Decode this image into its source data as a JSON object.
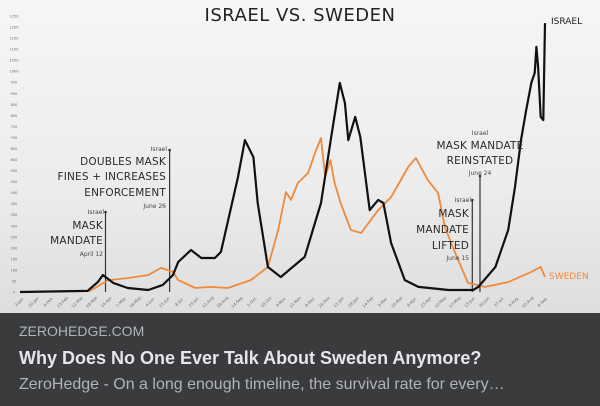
{
  "card": {
    "domain": "ZEROHEDGE.COM",
    "title": "Why Does No One Ever Talk About Sweden Anymore?",
    "description": "ZeroHedge - On a long enough timeline, the survival rate for every…"
  },
  "colors": {
    "israel": "#111111",
    "sweden": "#ef8a3c",
    "card_bg": "#3a3b3c"
  },
  "chart_data": {
    "type": "line",
    "title": "ISRAEL VS. SWEDEN",
    "ylim": [
      0,
      1250
    ],
    "yticks": [
      0,
      50,
      100,
      150,
      200,
      250,
      300,
      350,
      400,
      450,
      500,
      550,
      600,
      650,
      700,
      750,
      800,
      850,
      900,
      950,
      1000,
      1050,
      1100,
      1150,
      1200,
      1250
    ],
    "xticks": [
      "3-Jan",
      "20-Jan",
      "6-Feb",
      "23-Feb",
      "11-Mar",
      "28-Mar",
      "14-Apr",
      "1-May",
      "18-May",
      "4-Jun",
      "21-Jun",
      "8-Jul",
      "25-Jul",
      "11-Aug",
      "28-Aug",
      "14-Sep",
      "1-Oct",
      "18-Oct",
      "4-Nov",
      "21-Nov",
      "8-Dec",
      "25-Dec",
      "11-Jan",
      "28-Jan",
      "14-Feb",
      "3-Mar",
      "20-Mar",
      "6-Apr",
      "23-Apr",
      "10-May",
      "27-May",
      "13-Jun",
      "30-Jun",
      "17-Jul",
      "3-Aug",
      "20-Aug",
      "6-Sep"
    ],
    "grid": false,
    "series": [
      {
        "name": "ISRAEL",
        "points": [
          [
            "2020-01-03",
            0
          ],
          [
            "2020-03-22",
            5
          ],
          [
            "2020-04-03",
            45
          ],
          [
            "2020-04-09",
            77
          ],
          [
            "2020-04-21",
            41
          ],
          [
            "2020-05-08",
            18
          ],
          [
            "2020-06-01",
            9
          ],
          [
            "2020-06-18",
            32
          ],
          [
            "2020-06-30",
            77
          ],
          [
            "2020-07-06",
            136
          ],
          [
            "2020-07-21",
            190
          ],
          [
            "2020-08-02",
            154
          ],
          [
            "2020-08-18",
            154
          ],
          [
            "2020-08-25",
            181
          ],
          [
            "2020-09-14",
            521
          ],
          [
            "2020-09-22",
            688
          ],
          [
            "2020-10-02",
            611
          ],
          [
            "2020-10-07",
            403
          ],
          [
            "2020-10-19",
            113
          ],
          [
            "2020-11-03",
            68
          ],
          [
            "2020-12-01",
            159
          ],
          [
            "2020-12-20",
            403
          ],
          [
            "2021-01-01",
            702
          ],
          [
            "2021-01-11",
            947
          ],
          [
            "2021-01-17",
            856
          ],
          [
            "2021-01-21",
            688
          ],
          [
            "2021-01-29",
            793
          ],
          [
            "2021-02-04",
            702
          ],
          [
            "2021-02-15",
            371
          ],
          [
            "2021-02-25",
            417
          ],
          [
            "2021-03-03",
            403
          ],
          [
            "2021-03-12",
            222
          ],
          [
            "2021-03-28",
            54
          ],
          [
            "2021-04-13",
            23
          ],
          [
            "2021-05-18",
            9
          ],
          [
            "2021-06-16",
            9
          ],
          [
            "2021-06-22",
            23
          ],
          [
            "2021-07-12",
            113
          ],
          [
            "2021-07-27",
            281
          ],
          [
            "2021-08-04",
            476
          ],
          [
            "2021-08-11",
            688
          ],
          [
            "2021-08-17",
            824
          ],
          [
            "2021-08-23",
            947
          ],
          [
            "2021-08-27",
            992
          ],
          [
            "2021-08-29",
            1110
          ],
          [
            "2021-08-31",
            1019
          ],
          [
            "2021-09-03",
            793
          ],
          [
            "2021-09-06",
            779
          ],
          [
            "2021-09-08",
            1218
          ]
        ]
      },
      {
        "name": "SWEDEN",
        "points": [
          [
            "2020-01-03",
            0
          ],
          [
            "2020-03-25",
            5
          ],
          [
            "2020-04-15",
            54
          ],
          [
            "2020-05-08",
            63
          ],
          [
            "2020-06-01",
            77
          ],
          [
            "2020-06-16",
            109
          ],
          [
            "2020-06-30",
            91
          ],
          [
            "2020-07-06",
            54
          ],
          [
            "2020-07-26",
            18
          ],
          [
            "2020-08-13",
            23
          ],
          [
            "2020-09-02",
            18
          ],
          [
            "2020-09-29",
            54
          ],
          [
            "2020-10-19",
            113
          ],
          [
            "2020-10-31",
            281
          ],
          [
            "2020-11-09",
            453
          ],
          [
            "2020-11-15",
            417
          ],
          [
            "2020-11-23",
            494
          ],
          [
            "2020-12-05",
            539
          ],
          [
            "2020-12-13",
            630
          ],
          [
            "2020-12-20",
            697
          ],
          [
            "2020-12-25",
            521
          ],
          [
            "2020-12-31",
            598
          ],
          [
            "2021-01-05",
            494
          ],
          [
            "2021-01-12",
            403
          ],
          [
            "2021-01-24",
            281
          ],
          [
            "2021-02-05",
            267
          ],
          [
            "2021-02-25",
            371
          ],
          [
            "2021-03-12",
            430
          ],
          [
            "2021-04-01",
            566
          ],
          [
            "2021-04-10",
            607
          ],
          [
            "2021-04-24",
            507
          ],
          [
            "2021-05-06",
            448
          ],
          [
            "2021-05-14",
            294
          ],
          [
            "2021-05-26",
            177
          ],
          [
            "2021-06-02",
            113
          ],
          [
            "2021-06-10",
            41
          ],
          [
            "2021-06-30",
            23
          ],
          [
            "2021-07-27",
            45
          ],
          [
            "2021-08-23",
            91
          ],
          [
            "2021-09-03",
            113
          ],
          [
            "2021-09-08",
            68
          ]
        ]
      }
    ],
    "annotations": [
      {
        "country": "Israel",
        "lines": [
          "MASK",
          "MANDATE"
        ],
        "date_label": "April 12",
        "date": "2020-04-12"
      },
      {
        "country": "Israel",
        "lines": [
          "DOUBLES MASK",
          "FINES + INCREASES",
          "ENFORCEMENT"
        ],
        "date_label": "June 26",
        "date": "2020-06-26"
      },
      {
        "country": "Israel",
        "lines": [
          "MASK",
          "MANDATE",
          "LIFTED"
        ],
        "date_label": "June 15",
        "date": "2021-06-15"
      },
      {
        "country": "Israel",
        "lines": [
          "MASK MANDATE",
          "REINSTATED"
        ],
        "date_label": "June 24",
        "date": "2021-06-24"
      }
    ]
  }
}
